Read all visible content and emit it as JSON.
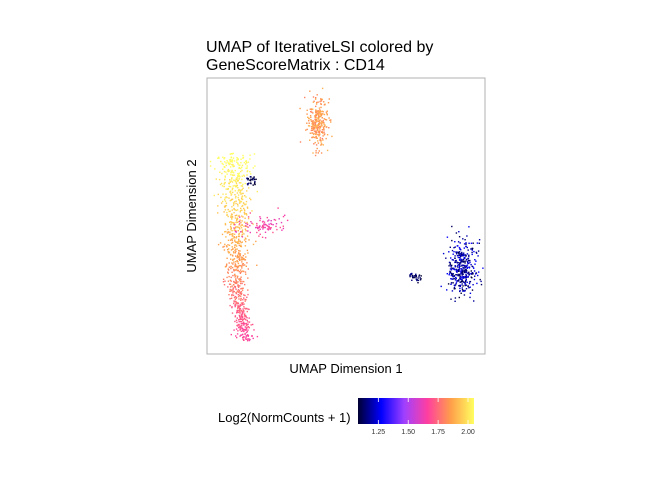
{
  "chart_data": {
    "type": "scatter",
    "title_line1": "UMAP of IterativeLSI colored by",
    "title_line2": "GeneScoreMatrix : CD14",
    "xlabel": "UMAP Dimension 1",
    "ylabel": "UMAP Dimension 2",
    "axis_ticks_shown": false,
    "grid": false,
    "legend": {
      "title": "Log2(NormCounts + 1)",
      "position": "bottom",
      "ticks": [
        "1.25",
        "1.50",
        "1.75",
        "2.00"
      ],
      "tick_values": [
        1.25,
        1.5,
        1.75,
        2.0
      ],
      "range": [
        1.08,
        2.05
      ],
      "colors": [
        "#000033",
        "#0000ff",
        "#a040ff",
        "#ff3fa0",
        "#ff9e4a",
        "#ffff60"
      ]
    },
    "clusters": [
      {
        "label": "top-center cluster",
        "center": [
          0.395,
          0.84
        ],
        "spread": [
          0.018,
          0.075
        ],
        "n": 280,
        "value": 1.85
      },
      {
        "label": "left elongated cluster",
        "center": [
          0.09,
          0.4
        ],
        "spread": [
          0.03,
          0.3
        ],
        "n": 900,
        "value_range": [
          1.6,
          2.05
        ]
      },
      {
        "label": "left branch",
        "center": [
          0.2,
          0.47
        ],
        "spread": [
          0.04,
          0.03
        ],
        "n": 90,
        "value": 1.65
      },
      {
        "label": "small dark cluster left",
        "center": [
          0.155,
          0.63
        ],
        "spread": [
          0.01,
          0.015
        ],
        "n": 30,
        "value": 1.1
      },
      {
        "label": "small cluster right",
        "center": [
          0.75,
          0.28
        ],
        "spread": [
          0.012,
          0.012
        ],
        "n": 35,
        "value": 1.12
      },
      {
        "label": "right blue cluster",
        "center": [
          0.915,
          0.31
        ],
        "spread": [
          0.025,
          0.09
        ],
        "n": 400,
        "value_range": [
          1.08,
          1.3
        ]
      }
    ]
  }
}
